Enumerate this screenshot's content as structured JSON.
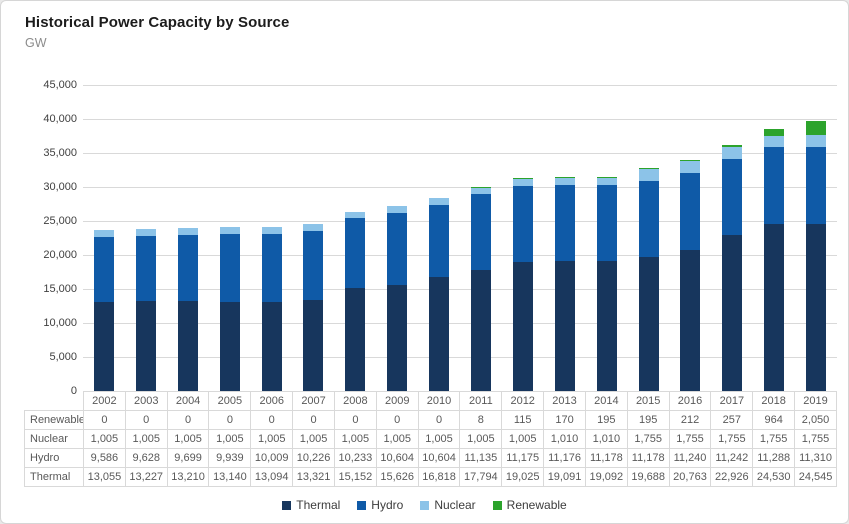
{
  "title": "Historical Power Capacity by Source",
  "subtitle": "GW",
  "colors": {
    "thermal": "#17365D",
    "hydro": "#0F5AA7",
    "nuclear": "#8CC3E8",
    "renewable": "#2CA32C",
    "gridline": "#d9d9d9",
    "table_border": "#d9d9d9",
    "axis_text": "#404040",
    "table_text": "#595959"
  },
  "chart_data": {
    "type": "bar",
    "stacked": true,
    "title": "Historical Power Capacity by Source",
    "ylabel": "GW",
    "xlabel": "",
    "ylim": [
      0,
      45000
    ],
    "ytick_step": 5000,
    "ytick_labels": [
      "0",
      "5,000",
      "10,000",
      "15,000",
      "20,000",
      "25,000",
      "30,000",
      "35,000",
      "40,000",
      "45,000"
    ],
    "grid": true,
    "legend_position": "bottom",
    "categories": [
      "2002",
      "2003",
      "2004",
      "2005",
      "2006",
      "2007",
      "2008",
      "2009",
      "2010",
      "2011",
      "2012",
      "2013",
      "2014",
      "2015",
      "2016",
      "2017",
      "2018",
      "2019"
    ],
    "series": [
      {
        "name": "Thermal",
        "color_key": "thermal",
        "values": [
          13055,
          13227,
          13210,
          13140,
          13094,
          13321,
          15152,
          15626,
          16818,
          17794,
          19025,
          19091,
          19092,
          19688,
          20763,
          22926,
          24530,
          24545
        ]
      },
      {
        "name": "Hydro",
        "color_key": "hydro",
        "values": [
          9586,
          9628,
          9699,
          9939,
          10009,
          10226,
          10233,
          10604,
          10604,
          11135,
          11175,
          11176,
          11178,
          11178,
          11240,
          11242,
          11288,
          11310
        ]
      },
      {
        "name": "Nuclear",
        "color_key": "nuclear",
        "values": [
          1005,
          1005,
          1005,
          1005,
          1005,
          1005,
          1005,
          1005,
          1005,
          1005,
          1005,
          1010,
          1010,
          1755,
          1755,
          1755,
          1755,
          1755
        ]
      },
      {
        "name": "Renewable",
        "color_key": "renewable",
        "values": [
          0,
          0,
          0,
          0,
          0,
          0,
          0,
          0,
          0,
          8,
          115,
          170,
          195,
          195,
          212,
          257,
          964,
          2050
        ]
      }
    ]
  },
  "table": {
    "years": [
      "2002",
      "2003",
      "2004",
      "2005",
      "2006",
      "2007",
      "2008",
      "2009",
      "2010",
      "2011",
      "2012",
      "2013",
      "2014",
      "2015",
      "2016",
      "2017",
      "2018",
      "2019"
    ],
    "rows": [
      {
        "label": "Renewable",
        "values": [
          "0",
          "0",
          "0",
          "0",
          "0",
          "0",
          "0",
          "0",
          "0",
          "8",
          "115",
          "170",
          "195",
          "195",
          "212",
          "257",
          "964",
          "2,050"
        ]
      },
      {
        "label": "Nuclear",
        "values": [
          "1,005",
          "1,005",
          "1,005",
          "1,005",
          "1,005",
          "1,005",
          "1,005",
          "1,005",
          "1,005",
          "1,005",
          "1,005",
          "1,010",
          "1,010",
          "1,755",
          "1,755",
          "1,755",
          "1,755",
          "1,755"
        ]
      },
      {
        "label": "Hydro",
        "values": [
          "9,586",
          "9,628",
          "9,699",
          "9,939",
          "10,009",
          "10,226",
          "10,233",
          "10,604",
          "10,604",
          "11,135",
          "11,175",
          "11,176",
          "11,178",
          "11,178",
          "11,240",
          "11,242",
          "11,288",
          "11,310"
        ]
      },
      {
        "label": "Thermal",
        "values": [
          "13,055",
          "13,227",
          "13,210",
          "13,140",
          "13,094",
          "13,321",
          "15,152",
          "15,626",
          "16,818",
          "17,794",
          "19,025",
          "19,091",
          "19,092",
          "19,688",
          "20,763",
          "22,926",
          "24,530",
          "24,545"
        ]
      }
    ]
  },
  "legend": [
    {
      "label": "Thermal",
      "color_key": "thermal"
    },
    {
      "label": "Hydro",
      "color_key": "hydro"
    },
    {
      "label": "Nuclear",
      "color_key": "nuclear"
    },
    {
      "label": "Renewable",
      "color_key": "renewable"
    }
  ]
}
